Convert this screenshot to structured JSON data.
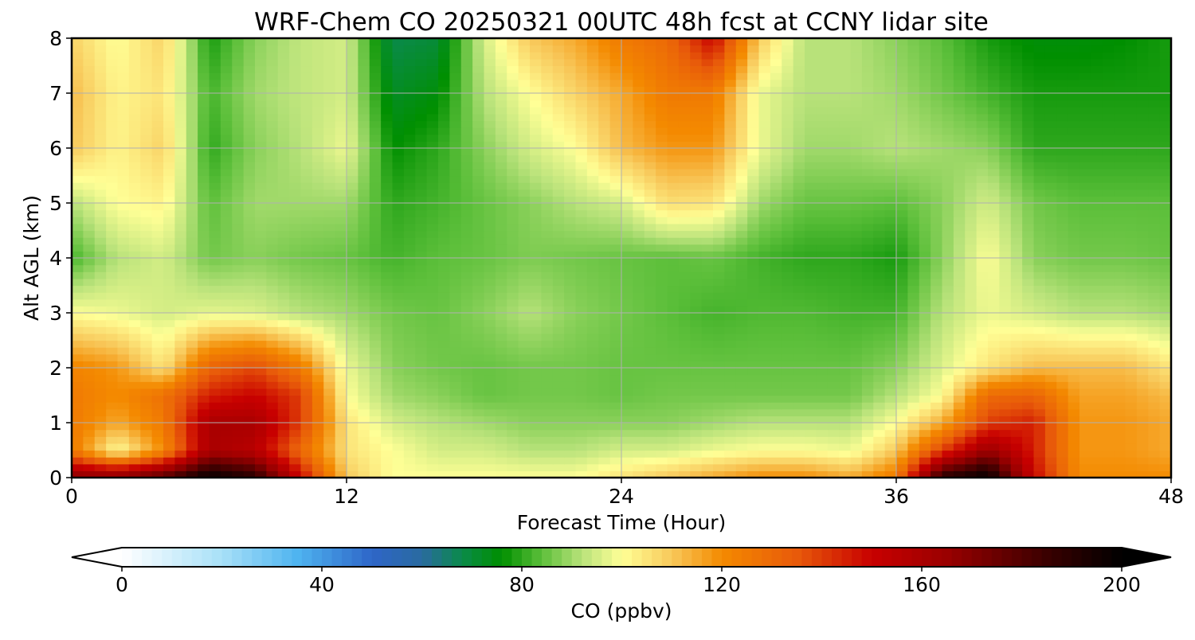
{
  "chart_data": {
    "type": "heatmap",
    "title": "WRF-Chem CO  20250321 00UTC 48h fcst at CCNY lidar site",
    "xlabel": "Forecast Time (Hour)",
    "ylabel": "Alt AGL (km)",
    "xlim": [
      0,
      48
    ],
    "ylim": [
      0,
      8
    ],
    "x_ticks": [
      "0",
      "12",
      "24",
      "36",
      "48"
    ],
    "y_ticks": [
      "0",
      "1",
      "2",
      "3",
      "4",
      "5",
      "6",
      "7",
      "8"
    ],
    "grid": true,
    "x": [
      0,
      2,
      4,
      6,
      8,
      10,
      12,
      14,
      16,
      18,
      20,
      22,
      24,
      26,
      28,
      30,
      32,
      34,
      36,
      38,
      40,
      42,
      44,
      46,
      48
    ],
    "y": [
      0,
      0.5,
      1,
      1.5,
      2,
      3,
      4,
      5,
      6,
      7,
      8
    ],
    "z": [
      [
        170,
        170,
        180,
        200,
        190,
        150,
        110,
        100,
        100,
        100,
        100,
        100,
        105,
        110,
        115,
        120,
        120,
        115,
        125,
        190,
        200,
        150,
        120,
        120,
        120
      ],
      [
        125,
        100,
        120,
        160,
        155,
        130,
        105,
        100,
        95,
        95,
        92,
        92,
        95,
        95,
        98,
        100,
        100,
        98,
        110,
        140,
        165,
        145,
        118,
        118,
        115
      ],
      [
        125,
        115,
        125,
        160,
        160,
        140,
        105,
        95,
        92,
        90,
        88,
        88,
        88,
        88,
        90,
        92,
        92,
        92,
        100,
        115,
        140,
        145,
        118,
        118,
        115
      ],
      [
        125,
        120,
        128,
        145,
        150,
        140,
        100,
        90,
        88,
        85,
        86,
        86,
        85,
        86,
        86,
        86,
        86,
        86,
        92,
        100,
        130,
        132,
        116,
        116,
        112
      ],
      [
        122,
        118,
        105,
        132,
        138,
        125,
        98,
        88,
        86,
        85,
        86,
        86,
        85,
        85,
        85,
        85,
        85,
        85,
        88,
        96,
        105,
        112,
        112,
        112,
        105
      ],
      [
        100,
        98,
        95,
        97,
        96,
        92,
        90,
        86,
        85,
        88,
        92,
        88,
        86,
        84,
        82,
        83,
        83,
        82,
        82,
        92,
        98,
        95,
        92,
        92,
        90
      ],
      [
        82,
        92,
        95,
        86,
        88,
        86,
        85,
        82,
        84,
        85,
        87,
        86,
        85,
        84,
        85,
        82,
        80,
        80,
        78,
        88,
        100,
        88,
        86,
        86,
        85
      ],
      [
        92,
        100,
        102,
        84,
        90,
        90,
        90,
        80,
        82,
        85,
        88,
        92,
        95,
        106,
        105,
        90,
        85,
        85,
        84,
        88,
        95,
        86,
        84,
        84,
        84
      ],
      [
        110,
        102,
        108,
        80,
        88,
        92,
        98,
        76,
        80,
        88,
        95,
        100,
        112,
        118,
        118,
        98,
        90,
        90,
        92,
        90,
        88,
        80,
        80,
        80,
        80
      ],
      [
        112,
        102,
        105,
        82,
        90,
        93,
        95,
        72,
        75,
        92,
        100,
        108,
        115,
        125,
        125,
        98,
        92,
        92,
        90,
        86,
        82,
        78,
        78,
        78,
        78
      ],
      [
        108,
        100,
        108,
        78,
        88,
        93,
        95,
        68,
        70,
        95,
        110,
        115,
        125,
        130,
        150,
        110,
        92,
        92,
        88,
        84,
        78,
        75,
        75,
        76,
        78
      ]
    ],
    "colorbar": {
      "label": "CO  (ppbv)",
      "min": 0,
      "max": 200,
      "ticks": [
        "0",
        "40",
        "80",
        "120",
        "160",
        "200"
      ],
      "extend": "both",
      "colors": [
        {
          "v": 0,
          "c": "#ffffff"
        },
        {
          "v": 20,
          "c": "#a8e0f8"
        },
        {
          "v": 35,
          "c": "#4fb4f0"
        },
        {
          "v": 50,
          "c": "#2e66c8"
        },
        {
          "v": 60,
          "c": "#2a6aa0"
        },
        {
          "v": 68,
          "c": "#0a8a4a"
        },
        {
          "v": 76,
          "c": "#008f00"
        },
        {
          "v": 84,
          "c": "#5cbf3a"
        },
        {
          "v": 92,
          "c": "#b8e27a"
        },
        {
          "v": 100,
          "c": "#ffff96"
        },
        {
          "v": 110,
          "c": "#f8c85a"
        },
        {
          "v": 120,
          "c": "#f48a00"
        },
        {
          "v": 135,
          "c": "#e85a0a"
        },
        {
          "v": 150,
          "c": "#c80000"
        },
        {
          "v": 165,
          "c": "#9a0000"
        },
        {
          "v": 185,
          "c": "#3a0000"
        },
        {
          "v": 200,
          "c": "#000000"
        }
      ]
    }
  }
}
